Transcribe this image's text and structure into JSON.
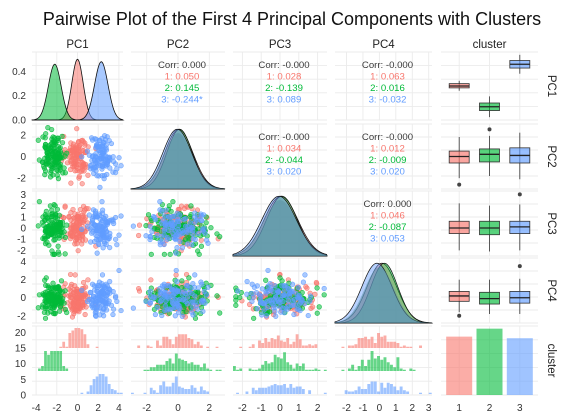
{
  "title": "Pairwise Plot of the First 4 Principal Components with Clusters",
  "variables": [
    "PC1",
    "PC2",
    "PC3",
    "PC4",
    "cluster"
  ],
  "colors": {
    "1": "#f8766d",
    "2": "#00ba38",
    "3": "#619cff",
    "all": "#5a8fa3",
    "grid": "#ebebeb",
    "text": "#3a3a3a"
  },
  "chart_data": {
    "type": "scatter",
    "subtype": "pairs-matrix",
    "clusters": [
      "1",
      "2",
      "3"
    ],
    "correlations": [
      {
        "pair": [
          "PC1",
          "PC2"
        ],
        "row": 0,
        "col": 1,
        "overall": "Corr: 0.000",
        "by_cluster": [
          "1: 0.050",
          "2: 0.145",
          "3: -0.244*"
        ]
      },
      {
        "pair": [
          "PC1",
          "PC3"
        ],
        "row": 0,
        "col": 2,
        "overall": "Corr: -0.000",
        "by_cluster": [
          "1: 0.028",
          "2: -0.139",
          "3: 0.089"
        ]
      },
      {
        "pair": [
          "PC1",
          "PC4"
        ],
        "row": 0,
        "col": 3,
        "overall": "Corr: -0.000",
        "by_cluster": [
          "1: 0.063",
          "2: 0.016",
          "3: -0.032"
        ]
      },
      {
        "pair": [
          "PC2",
          "PC3"
        ],
        "row": 1,
        "col": 2,
        "overall": "Corr: -0.000",
        "by_cluster": [
          "1: 0.034",
          "2: -0.044",
          "3: 0.020"
        ]
      },
      {
        "pair": [
          "PC2",
          "PC4"
        ],
        "row": 1,
        "col": 3,
        "overall": "Corr: -0.000",
        "by_cluster": [
          "1: 0.012",
          "2: -0.009",
          "3: 0.020"
        ]
      },
      {
        "pair": [
          "PC3",
          "PC4"
        ],
        "row": 2,
        "col": 3,
        "overall": "Corr: 0.000",
        "by_cluster": [
          "1: 0.046",
          "2: -0.087",
          "3: 0.053"
        ]
      }
    ],
    "x_axis_ticks": [
      {
        "col": 0,
        "ticks": [
          "-4",
          "-2",
          "0",
          "2",
          "4"
        ]
      },
      {
        "col": 1,
        "ticks": [
          "-2",
          "0",
          "2"
        ]
      },
      {
        "col": 2,
        "ticks": [
          "-2",
          "-1",
          "0",
          "1",
          "2"
        ]
      },
      {
        "col": 3,
        "ticks": [
          "-2",
          "-1",
          "0",
          "1",
          "2",
          "3"
        ]
      },
      {
        "col": 4,
        "ticks": [
          "1",
          "2",
          "3"
        ]
      }
    ],
    "y_axis_ticks": [
      {
        "row": 0,
        "ticks": [
          "0.0",
          "0.2",
          "0.4"
        ]
      },
      {
        "row": 1,
        "ticks": [
          "-2",
          "0",
          "2"
        ]
      },
      {
        "row": 2,
        "ticks": [
          "-2",
          "-1",
          "0",
          "1",
          "2",
          "3"
        ]
      },
      {
        "row": 3,
        "ticks": [
          "-2",
          "0",
          "2",
          "4"
        ]
      },
      {
        "row": 4,
        "ticks": [
          "0",
          "5",
          "10",
          "15",
          "20"
        ]
      }
    ],
    "density_pc1": [
      {
        "cluster": "1",
        "mean": 0.0,
        "sd": 0.55,
        "peak": 0.5
      },
      {
        "cluster": "2",
        "mean": -2.2,
        "sd": 0.62,
        "peak": 0.46
      },
      {
        "cluster": "3",
        "mean": 2.3,
        "sd": 0.65,
        "peak": 0.48
      }
    ],
    "cluster_counts": [
      {
        "cluster": "1",
        "value": 110
      },
      {
        "cluster": "2",
        "value": 125
      },
      {
        "cluster": "3",
        "value": 107
      }
    ],
    "boxplots": [
      {
        "pc": "PC1",
        "stats": [
          {
            "cluster": "1",
            "min": -0.5,
            "q1": -0.2,
            "median": 0.0,
            "q3": 0.25,
            "max": 0.55
          },
          {
            "cluster": "2",
            "min": -3.3,
            "q1": -2.6,
            "median": -2.2,
            "q3": -1.8,
            "max": -1.1
          },
          {
            "cluster": "3",
            "min": 1.3,
            "q1": 1.9,
            "median": 2.3,
            "q3": 2.7,
            "max": 3.3
          }
        ]
      },
      {
        "pc": "PC2",
        "stats": [
          {
            "cluster": "1",
            "min": -2.0,
            "q1": -0.6,
            "median": 0.0,
            "q3": 0.5,
            "max": 1.8
          },
          {
            "cluster": "2",
            "min": -1.8,
            "q1": -0.5,
            "median": 0.2,
            "q3": 0.7,
            "max": 1.9
          },
          {
            "cluster": "3",
            "min": -2.1,
            "q1": -0.6,
            "median": 0.1,
            "q3": 0.8,
            "max": 2.2
          }
        ]
      },
      {
        "pc": "PC3",
        "stats": [
          {
            "cluster": "1",
            "min": -2.0,
            "q1": -0.5,
            "median": 0.0,
            "q3": 0.6,
            "max": 2.2
          },
          {
            "cluster": "2",
            "min": -2.1,
            "q1": -0.6,
            "median": 0.0,
            "q3": 0.6,
            "max": 2.0
          },
          {
            "cluster": "3",
            "min": -2.0,
            "q1": -0.5,
            "median": 0.1,
            "q3": 0.6,
            "max": 2.1
          }
        ]
      },
      {
        "pc": "PC4",
        "stats": [
          {
            "cluster": "1",
            "min": -1.6,
            "q1": -0.4,
            "median": 0.2,
            "q3": 0.7,
            "max": 2.0
          },
          {
            "cluster": "2",
            "min": -1.8,
            "q1": -0.7,
            "median": -0.1,
            "q3": 0.6,
            "max": 2.0
          },
          {
            "cluster": "3",
            "min": -1.8,
            "q1": -0.6,
            "median": 0.0,
            "q3": 0.7,
            "max": 2.1
          }
        ]
      }
    ]
  }
}
